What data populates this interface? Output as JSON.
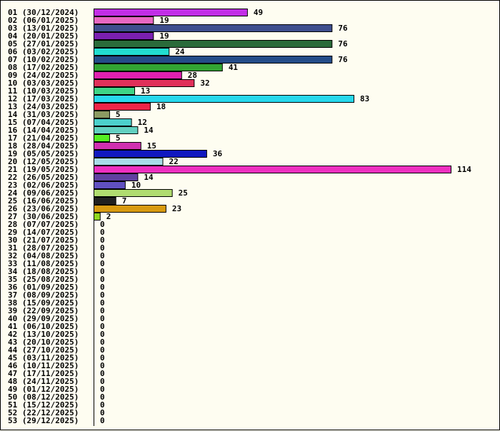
{
  "chart_data": {
    "type": "bar",
    "orientation": "horizontal",
    "grid": false,
    "legend": "none",
    "xlim": [
      0,
      114
    ],
    "categories": [
      "01 (30/12/2024)",
      "02 (06/01/2025)",
      "03 (13/01/2025)",
      "04 (20/01/2025)",
      "05 (27/01/2025)",
      "06 (03/02/2025)",
      "07 (10/02/2025)",
      "08 (17/02/2025)",
      "09 (24/02/2025)",
      "10 (03/03/2025)",
      "11 (10/03/2025)",
      "12 (17/03/2025)",
      "13 (24/03/2025)",
      "14 (31/03/2025)",
      "15 (07/04/2025)",
      "16 (14/04/2025)",
      "17 (21/04/2025)",
      "18 (28/04/2025)",
      "19 (05/05/2025)",
      "20 (12/05/2025)",
      "21 (19/05/2025)",
      "22 (26/05/2025)",
      "23 (02/06/2025)",
      "24 (09/06/2025)",
      "25 (16/06/2025)",
      "26 (23/06/2025)",
      "27 (30/06/2025)",
      "28 (07/07/2025)",
      "29 (14/07/2025)",
      "30 (21/07/2025)",
      "31 (28/07/2025)",
      "32 (04/08/2025)",
      "33 (11/08/2025)",
      "34 (18/08/2025)",
      "35 (25/08/2025)",
      "36 (01/09/2025)",
      "37 (08/09/2025)",
      "38 (15/09/2025)",
      "39 (22/09/2025)",
      "40 (29/09/2025)",
      "41 (06/10/2025)",
      "42 (13/10/2025)",
      "43 (20/10/2025)",
      "44 (27/10/2025)",
      "45 (03/11/2025)",
      "46 (10/11/2025)",
      "47 (17/11/2025)",
      "48 (24/11/2025)",
      "49 (01/12/2025)",
      "50 (08/12/2025)",
      "51 (15/12/2025)",
      "52 (22/12/2025)",
      "53 (29/12/2025)"
    ],
    "values": [
      49,
      19,
      76,
      19,
      76,
      24,
      76,
      41,
      28,
      32,
      13,
      83,
      18,
      5,
      12,
      14,
      5,
      15,
      36,
      22,
      114,
      14,
      10,
      25,
      7,
      23,
      2,
      0,
      0,
      0,
      0,
      0,
      0,
      0,
      0,
      0,
      0,
      0,
      0,
      0,
      0,
      0,
      0,
      0,
      0,
      0,
      0,
      0,
      0,
      0,
      0,
      0,
      0
    ],
    "colors": [
      "#c22ee6",
      "#e868c2",
      "#3e4e8e",
      "#7a1fb0",
      "#2a6b3a",
      "#22ddd0",
      "#244c88",
      "#33a533",
      "#e020b0",
      "#e0305a",
      "#3ed486",
      "#28d8ec",
      "#ee2448",
      "#8c9a62",
      "#4cd0cc",
      "#62d0c0",
      "#55ee22",
      "#d030b0",
      "#1018c0",
      "#a8dce8",
      "#ee30c0",
      "#6040a0",
      "#6050c0",
      "#b0dc70",
      "#202020",
      "#d89a10",
      "#90d820"
    ]
  }
}
